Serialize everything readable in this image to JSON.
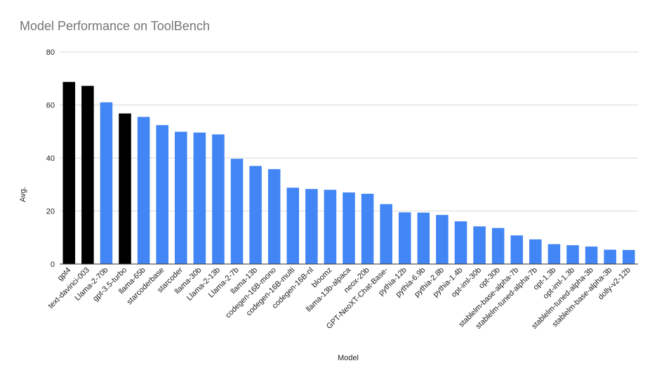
{
  "chart_data": {
    "type": "bar",
    "title": "Model Performance on ToolBench",
    "xlabel": "Model",
    "ylabel": "Avg.",
    "ylim": [
      0,
      80
    ],
    "yticks": [
      0,
      20,
      40,
      60,
      80
    ],
    "grid": true,
    "legend": "none",
    "colors": {
      "highlight": "#000000",
      "default": "#4285f4",
      "grid": "#d9d9d9",
      "axis": "#333333"
    },
    "categories": [
      "gpt4",
      "text-davinci-003",
      "Llama-2-70b",
      "gpt-3.5-turbo",
      "llama-65b",
      "starcoderbase",
      "starcoder",
      "llama-30b",
      "Llama-2-13b",
      "Llama-2-7b",
      "llama-13b",
      "codegen-16B-mono",
      "codegen-16B-multi",
      "codegen-16B-nl",
      "bloomz",
      "llama-13b-alpaca",
      "neox-20b",
      "GPT-NeoXT-Chat-Base-",
      "pythia-12b",
      "pythia-6.9b",
      "pythia-2.8b",
      "pythia-1.4b",
      "opt-iml-30b",
      "opt-30b",
      "stablelm-base-alpha-7b",
      "stablelm-tuned-alpha-7b",
      "opt-1.3b",
      "opt-iml-1.3b",
      "stablelm-tuned-alpha-3b",
      "stablelm-base-alpha-3b",
      "dolly-v2-12b"
    ],
    "values": [
      68.7,
      67.2,
      61.0,
      56.8,
      55.5,
      52.4,
      49.9,
      49.6,
      48.9,
      39.7,
      37.0,
      35.8,
      28.8,
      28.3,
      28.0,
      27.0,
      26.5,
      22.6,
      19.5,
      19.4,
      18.5,
      16.1,
      14.2,
      13.6,
      10.8,
      9.3,
      7.5,
      7.1,
      6.6,
      5.4,
      5.3
    ],
    "highlighted": [
      true,
      true,
      false,
      true,
      false,
      false,
      false,
      false,
      false,
      false,
      false,
      false,
      false,
      false,
      false,
      false,
      false,
      false,
      false,
      false,
      false,
      false,
      false,
      false,
      false,
      false,
      false,
      false,
      false,
      false,
      false
    ]
  }
}
